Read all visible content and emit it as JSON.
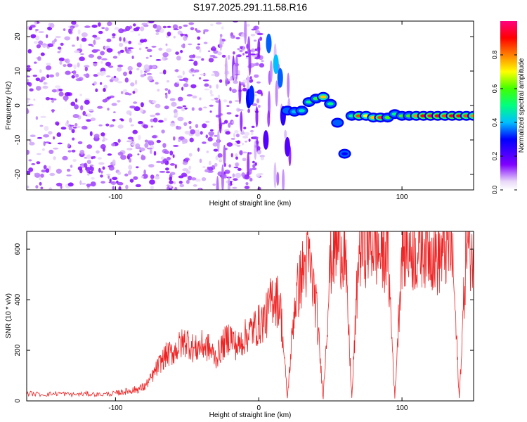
{
  "title": "S197.2025.291.11.58.R16",
  "chart_data": [
    {
      "type": "heatmap",
      "title": "S197.2025.291.11.58.R16",
      "xlabel": "Height of straight line (km)",
      "ylabel": "Frequency (Hz)",
      "xlim": [
        -162,
        150
      ],
      "ylim": [
        -24.5,
        24.5
      ],
      "xticks": [
        -100,
        0,
        100
      ],
      "xtick_labels": [
        "-100",
        "0",
        "100"
      ],
      "yticks": [
        -20,
        -10,
        0,
        10,
        20
      ],
      "ytick_labels": [
        "-20",
        "-10",
        "0",
        "10",
        "20"
      ],
      "colorbar": {
        "label": "Normalized spectral amplitude",
        "range": [
          0,
          1
        ],
        "ticks": [
          0.0,
          0.2,
          0.4,
          0.6,
          0.8
        ],
        "tick_labels": [
          "0.0",
          "0.2",
          "0.4",
          "0.6",
          "0.8"
        ]
      },
      "description_of_features": "Diffuse low-amplitude speckle for x < 0; dispersed signal streak near x = 5..20 reaching above 20 Hz; coherent band near -3..3 Hz for x > 20 with peaks near 0.9 around x = 70..140",
      "ridge": {
        "x": [
          20,
          25,
          30,
          35,
          40,
          45,
          50,
          55,
          60,
          65,
          70,
          75,
          80,
          85,
          90,
          95,
          100,
          105,
          110,
          115,
          120,
          125,
          130,
          135,
          140,
          145,
          150
        ],
        "freq": [
          -1.5,
          -1.8,
          -1.5,
          1.0,
          2.0,
          2.5,
          0.5,
          -5.0,
          -14.0,
          -3.0,
          -3.0,
          -3.0,
          -3.5,
          -3.5,
          -3.5,
          -2.5,
          -3.0,
          -3.0,
          -3.0,
          -3.0,
          -3.0,
          -3.0,
          -3.0,
          -3.0,
          -3.0,
          -3.0,
          -3.0
        ],
        "amplitude": [
          0.35,
          0.4,
          0.45,
          0.5,
          0.55,
          0.75,
          0.5,
          0.35,
          0.3,
          0.5,
          0.85,
          0.7,
          0.75,
          0.85,
          0.6,
          0.5,
          0.6,
          0.6,
          0.8,
          0.9,
          0.95,
          0.9,
          0.85,
          0.9,
          0.9,
          0.85,
          0.8
        ]
      }
    },
    {
      "type": "line",
      "xlabel": "Height of straight line (km)",
      "ylabel": "SNR (10 * v/v)",
      "xlim": [
        -162,
        150
      ],
      "ylim": [
        0,
        670
      ],
      "xticks": [
        -100,
        0,
        100
      ],
      "xtick_labels": [
        "-100",
        "0",
        "100"
      ],
      "yticks": [
        0,
        200,
        400,
        600
      ],
      "ytick_labels": [
        "0",
        "200",
        "400",
        "600"
      ],
      "series": [
        {
          "name": "SNR",
          "color": "#ee2222",
          "x": [
            -162,
            -150,
            -140,
            -130,
            -120,
            -110,
            -100,
            -95,
            -90,
            -85,
            -80,
            -75,
            -70,
            -65,
            -60,
            -55,
            -50,
            -45,
            -40,
            -35,
            -30,
            -25,
            -20,
            -15,
            -10,
            -5,
            0,
            5,
            10,
            15,
            20,
            25,
            30,
            35,
            40,
            45,
            50,
            55,
            60,
            65,
            70,
            75,
            80,
            85,
            90,
            95,
            100,
            105,
            110,
            115,
            120,
            125,
            130,
            135,
            140,
            145,
            150
          ],
          "values": [
            30,
            25,
            30,
            25,
            28,
            25,
            30,
            35,
            40,
            45,
            55,
            90,
            140,
            180,
            190,
            220,
            240,
            200,
            220,
            210,
            170,
            220,
            260,
            210,
            250,
            280,
            300,
            330,
            420,
            380,
            10,
            380,
            500,
            560,
            380,
            10,
            560,
            620,
            600,
            10,
            600,
            620,
            630,
            580,
            600,
            10,
            610,
            600,
            580,
            620,
            610,
            560,
            600,
            600,
            10,
            620,
            580
          ]
        }
      ]
    }
  ]
}
